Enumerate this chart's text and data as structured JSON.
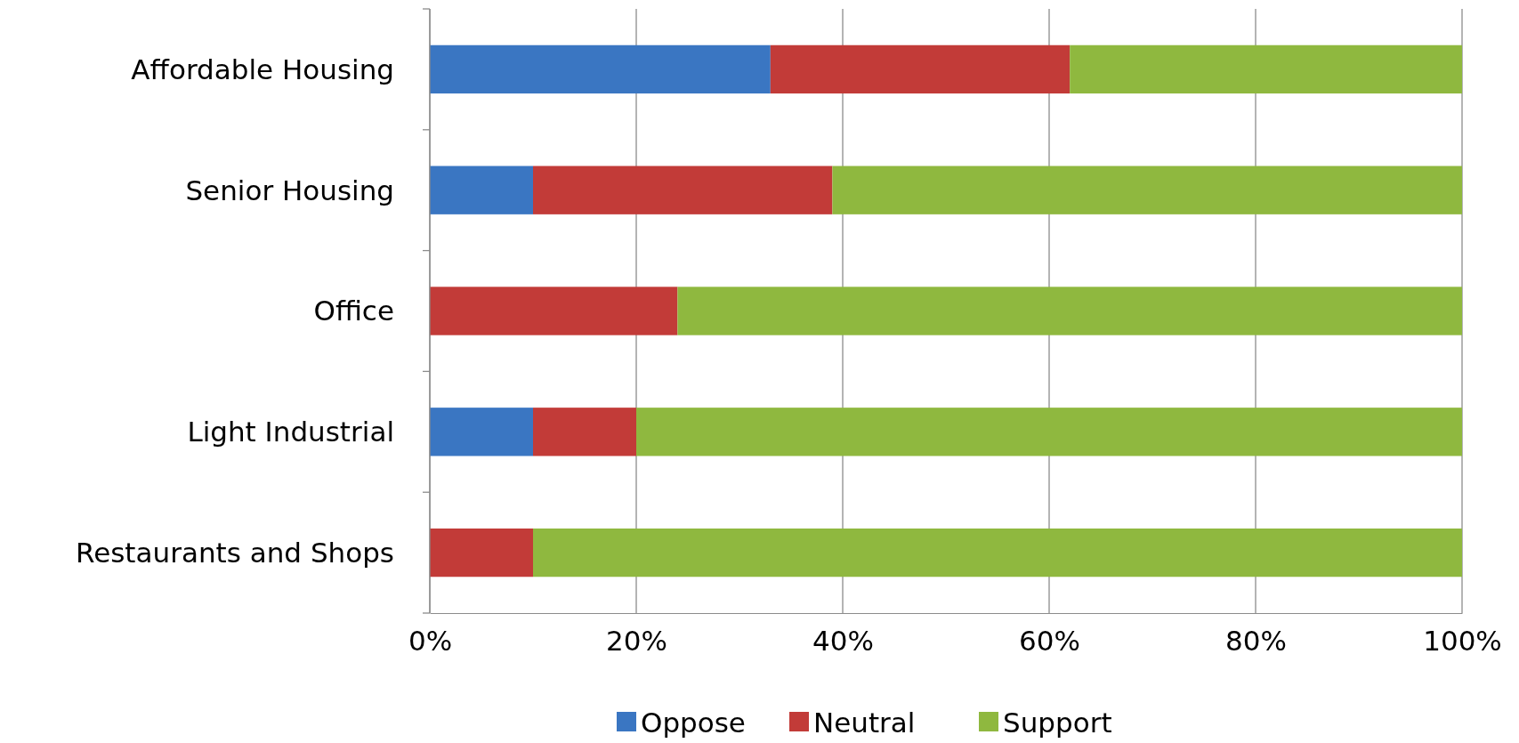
{
  "chart_data": {
    "type": "bar",
    "orientation": "horizontal",
    "stacked": true,
    "categories": [
      "Affordable Housing",
      "Senior Housing",
      "Office",
      "Light Industrial",
      "Restaurants and Shops"
    ],
    "series": [
      {
        "name": "Oppose",
        "color": "#3a76c2",
        "values": [
          33,
          10,
          0,
          10,
          0
        ]
      },
      {
        "name": "Neutral",
        "color": "#c23b38",
        "values": [
          29,
          29,
          24,
          10,
          10
        ]
      },
      {
        "name": "Support",
        "color": "#8fb83f",
        "values": [
          38,
          61,
          76,
          80,
          90
        ]
      }
    ],
    "xlim": [
      0,
      100
    ],
    "xticks": [
      {
        "value": 0,
        "label": "0%"
      },
      {
        "value": 20,
        "label": "20%"
      },
      {
        "value": 40,
        "label": "40%"
      },
      {
        "value": 60,
        "label": "60%"
      },
      {
        "value": 80,
        "label": "80%"
      },
      {
        "value": 100,
        "label": "100%"
      }
    ],
    "grid": "x",
    "legend": "bottom"
  }
}
